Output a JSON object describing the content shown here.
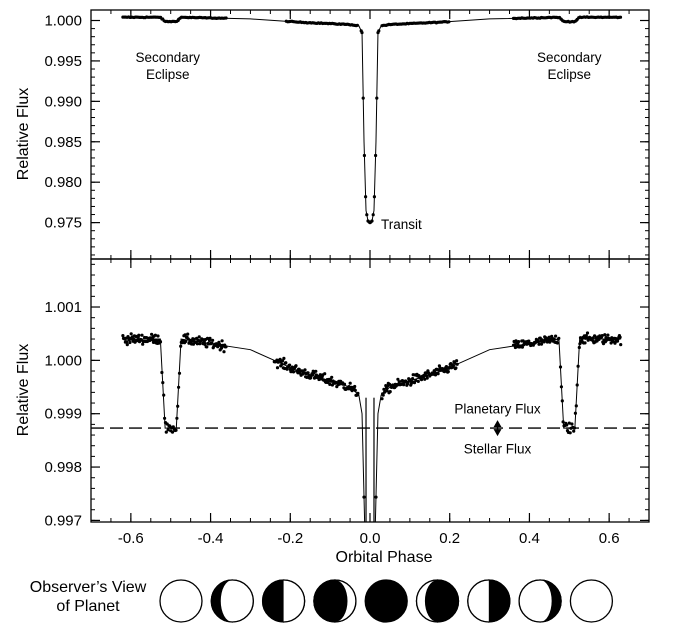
{
  "chart_data": [
    {
      "type": "line",
      "ylabel": "Relative Flux",
      "xlim": [
        -0.7,
        0.7
      ],
      "ylim": [
        0.9705,
        1.0013
      ],
      "yticks": [
        "1.000",
        "0.995",
        "0.990",
        "0.985",
        "0.980",
        "0.975"
      ],
      "ytick_values": [
        1.0,
        0.995,
        0.99,
        0.985,
        0.98,
        0.975
      ],
      "grid": false,
      "series": [
        {
          "model": {
            "x": [
              -0.62,
              -0.526,
              -0.514,
              -0.486,
              -0.474,
              -0.3,
              -0.18,
              -0.05,
              -0.028,
              -0.02,
              -0.015,
              -0.01,
              -0.005,
              0.0,
              0.005,
              0.01,
              0.015,
              0.02,
              0.028,
              0.05,
              0.18,
              0.3,
              0.474,
              0.486,
              0.514,
              0.526,
              0.63
            ],
            "y": [
              1.0004,
              1.0004,
              0.99987,
              0.99987,
              1.0004,
              1.0002,
              0.9998,
              0.9995,
              0.99935,
              0.9985,
              0.985,
              0.9765,
              0.9752,
              0.975,
              0.9752,
              0.9765,
              0.985,
              0.9985,
              0.99935,
              0.9995,
              0.9998,
              1.0002,
              1.0004,
              0.99987,
              0.99987,
              1.0004,
              1.0004
            ]
          }
        }
      ],
      "annotations": [
        {
          "text": [
            "Secondary",
            "Eclipse"
          ],
          "x": -0.5,
          "y": 0.99895
        },
        {
          "text": [
            "Transit"
          ],
          "x": 0.02,
          "y": 0.9752
        },
        {
          "text": [
            "Secondary",
            "Eclipse"
          ],
          "x": 0.5,
          "y": 0.99895
        }
      ]
    },
    {
      "type": "scatter",
      "xlabel": "Orbital Phase",
      "ylabel": "Relative Flux",
      "xlim": [
        -0.7,
        0.7
      ],
      "ylim": [
        0.99697,
        1.0019
      ],
      "xticks": [
        "-0.6",
        "-0.4",
        "-0.2",
        "0.0",
        "0.2",
        "0.4",
        "0.6"
      ],
      "xtick_values": [
        -0.6,
        -0.4,
        -0.2,
        0.0,
        0.2,
        0.4,
        0.6
      ],
      "yticks": [
        "1.001",
        "1.000",
        "0.999",
        "0.998",
        "0.997"
      ],
      "ytick_values": [
        1.001,
        1.0,
        0.999,
        0.998,
        0.997
      ],
      "grid": false,
      "stellar_flux_level": 0.99873,
      "model": {
        "x": [
          -0.62,
          -0.526,
          -0.514,
          -0.486,
          -0.474,
          -0.3,
          -0.18,
          -0.05,
          -0.028,
          -0.02,
          -0.012,
          0.012,
          0.02,
          0.028,
          0.05,
          0.18,
          0.3,
          0.474,
          0.486,
          0.514,
          0.526,
          0.63
        ],
        "y": [
          1.0004,
          1.0004,
          0.99873,
          0.99873,
          1.0004,
          1.0002,
          0.9998,
          0.9995,
          0.99935,
          0.999,
          0.9965,
          0.9965,
          0.999,
          0.99935,
          0.9995,
          0.9998,
          1.0002,
          1.0004,
          0.99873,
          0.99873,
          1.0004,
          1.0004
        ]
      },
      "annotations": [
        {
          "text": "Planetary Flux",
          "x": 0.32,
          "y": 0.9991
        },
        {
          "text": "Stellar Flux",
          "x": 0.32,
          "y": 0.99835
        }
      ]
    }
  ],
  "phases": {
    "label_line1": "Observer’s View",
    "label_line2": "of Planet",
    "illumination": [
      "full",
      "gibbous-waning",
      "half-waning",
      "crescent-waning",
      "new",
      "crescent-waxing",
      "half-waxing",
      "gibbous-waxing",
      "full"
    ]
  }
}
